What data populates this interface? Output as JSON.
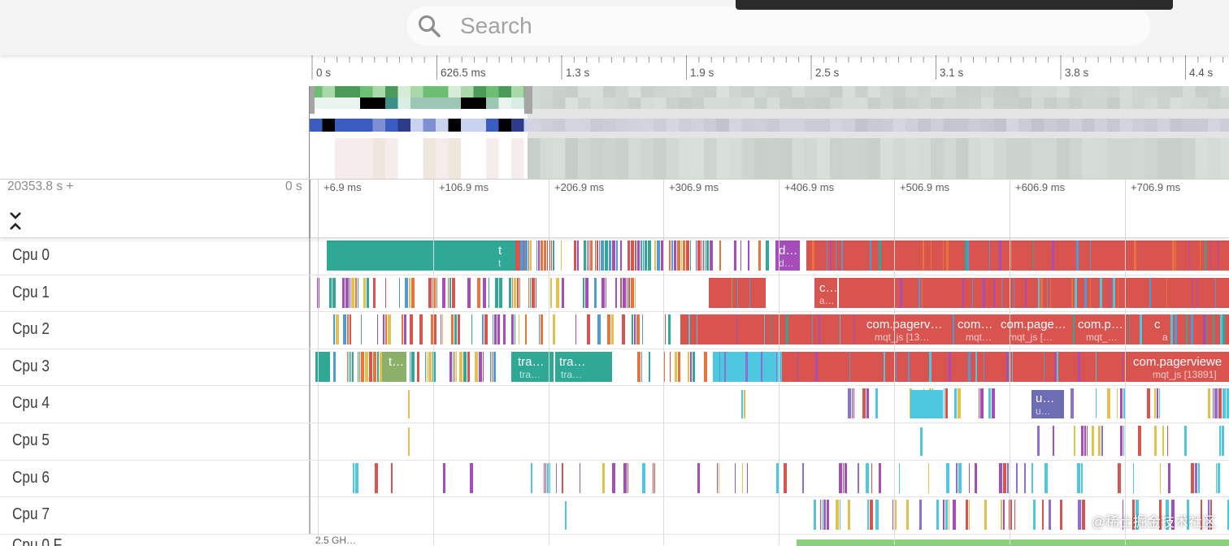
{
  "search": {
    "placeholder": "Search"
  },
  "overview": {
    "tick_labels": [
      "0 s",
      "626.5 ms",
      "1.3 s",
      "1.9 s",
      "2.5 s",
      "3.1 s",
      "3.8 s",
      "4.4 s"
    ]
  },
  "timeline": {
    "origin_label": "20353.8 s +",
    "zero_label": "0 s",
    "tick_labels": [
      "+6.9 ms",
      "+106.9 ms",
      "+206.9 ms",
      "+306.9 ms",
      "+406.9 ms",
      "+506.9 ms",
      "+606.9 ms",
      "+706.9 ms"
    ]
  },
  "tracks": [
    {
      "name": "Cpu 0",
      "slices": [
        {
          "title": "t",
          "sub": "t"
        },
        {
          "title": "d…",
          "sub": "d…"
        }
      ]
    },
    {
      "name": "Cpu 1",
      "slices": [
        {
          "title": "c…",
          "sub": "a…"
        }
      ]
    },
    {
      "name": "Cpu 2",
      "slices": [
        {
          "title": "com.pagerv…",
          "sub": "mqt_js [13…"
        },
        {
          "title": "com…",
          "sub": "mqt…"
        },
        {
          "title": "com.page…",
          "sub": "mqt_js […"
        },
        {
          "title": "com.p…",
          "sub": "mqt_…"
        },
        {
          "title": "c",
          "sub": "a"
        }
      ]
    },
    {
      "name": "Cpu 3",
      "slices": [
        {
          "title": "t…",
          "sub": ""
        },
        {
          "title": "tra…",
          "sub": "tra…"
        },
        {
          "title": "tra…",
          "sub": "tra…"
        },
        {
          "title": "com.pagerviewe",
          "sub": "mqt_js [13891]"
        }
      ]
    },
    {
      "name": "Cpu 4",
      "slices": [
        {
          "title": "u…",
          "sub": "u…"
        }
      ]
    },
    {
      "name": "Cpu 5",
      "slices": []
    },
    {
      "name": "Cpu 6",
      "slices": []
    },
    {
      "name": "Cpu 7",
      "slices": []
    }
  ],
  "partial_track": {
    "name": "Cpu 0 F…",
    "value": "2.5 GH…"
  },
  "watermark": "@稀土掘金技术社区",
  "colors": {
    "teal": "#2fa896",
    "red": "#d9534f",
    "orange": "#e8743b",
    "purple": "#a64dbc",
    "blue": "#4f9bd9",
    "cyan": "#4ec8e0",
    "green": "#8cb06a",
    "indigo": "#6d6db6",
    "violet": "#8e6fd1",
    "yellow": "#e2c24a"
  }
}
